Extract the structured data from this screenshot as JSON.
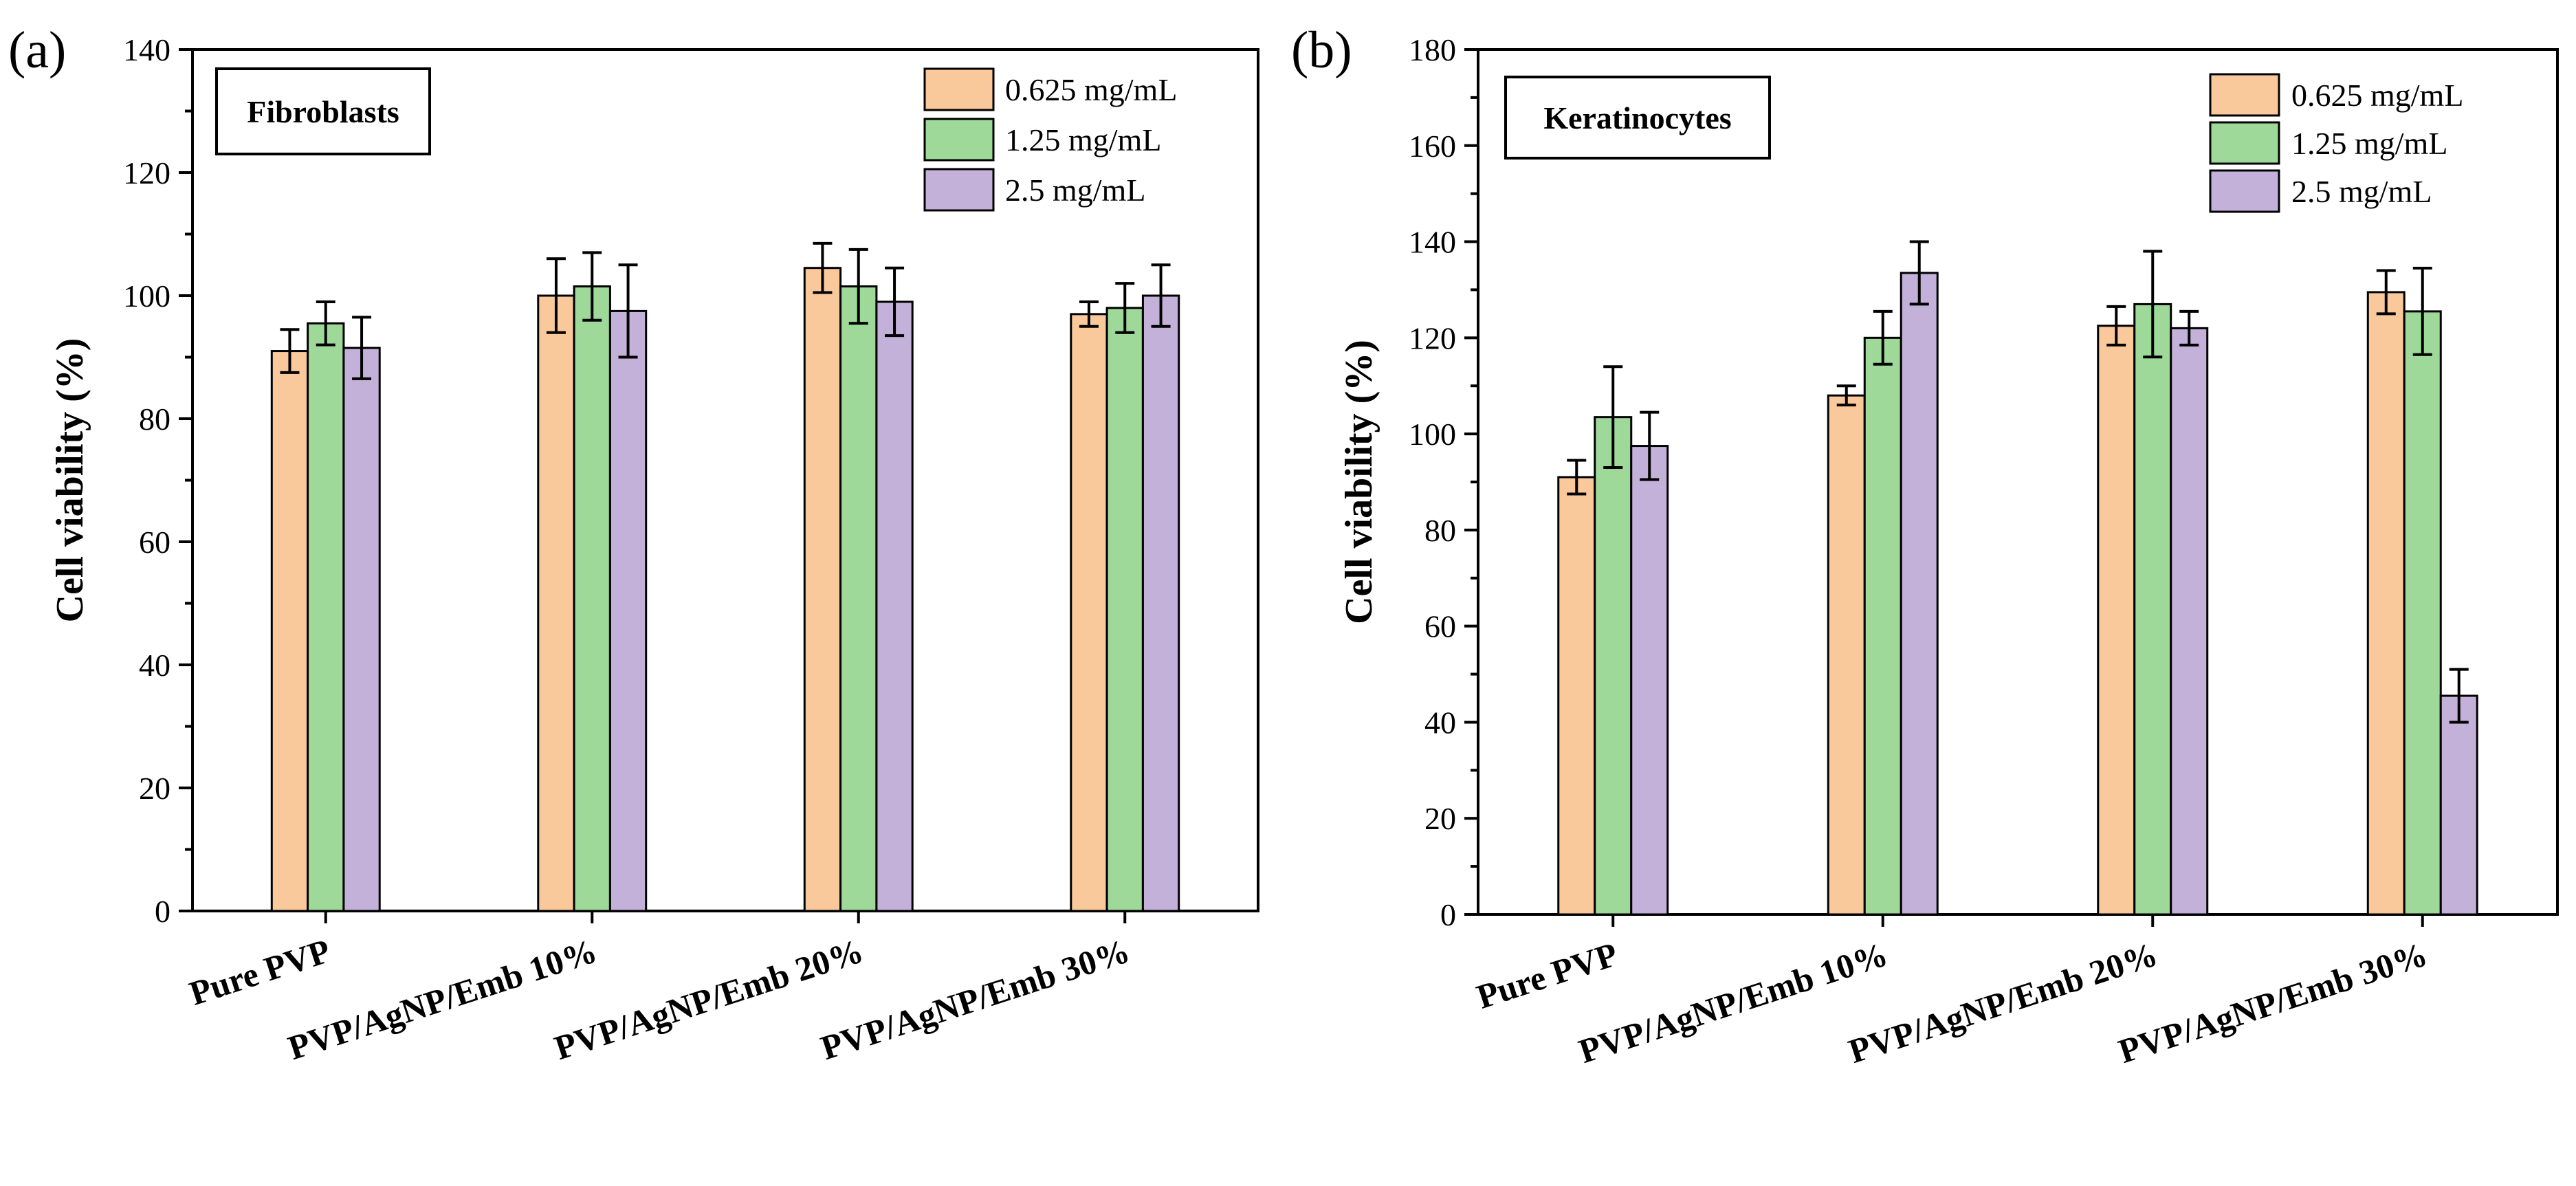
{
  "chart_data": [
    {
      "type": "bar",
      "panel_label": "(a)",
      "title": "Fibroblasts",
      "xlabel": "",
      "ylabel": "Cell viability (%)",
      "ylim": [
        0,
        140
      ],
      "yticks": [
        "0",
        "20",
        "40",
        "60",
        "80",
        "100",
        "120",
        "140"
      ],
      "categories": [
        "Pure PVP",
        "PVP/AgNP/Emb 10%",
        "PVP/AgNP/Emb 20%",
        "PVP/AgNP/Emb 30%"
      ],
      "legend_position": "top-right",
      "series": [
        {
          "name": "0.625 mg/mL",
          "color": "#f9c89b",
          "values": [
            91,
            100,
            104.5,
            97
          ],
          "errors": [
            3.5,
            6,
            4,
            2
          ]
        },
        {
          "name": "1.25 mg/mL",
          "color": "#9ed99a",
          "values": [
            95.5,
            101.5,
            101.5,
            98
          ],
          "errors": [
            3.5,
            5.5,
            6,
            4
          ]
        },
        {
          "name": "2.5 mg/mL",
          "color": "#c3b1d9",
          "values": [
            91.5,
            97.5,
            99,
            100
          ],
          "errors": [
            5,
            7.5,
            5.5,
            5
          ]
        }
      ]
    },
    {
      "type": "bar",
      "panel_label": "(b)",
      "title": "Keratinocytes",
      "xlabel": "",
      "ylabel": "Cell viability (%)",
      "ylim": [
        0,
        180
      ],
      "yticks": [
        "0",
        "20",
        "40",
        "60",
        "80",
        "100",
        "120",
        "140",
        "160",
        "180"
      ],
      "categories": [
        "Pure PVP",
        "PVP/AgNP/Emb 10%",
        "PVP/AgNP/Emb 20%",
        "PVP/AgNP/Emb 30%"
      ],
      "legend_position": "top-right",
      "series": [
        {
          "name": "0.625 mg/mL",
          "color": "#f9c89b",
          "values": [
            91,
            108,
            122.5,
            129.5
          ],
          "errors": [
            3.5,
            2,
            4,
            4.5
          ]
        },
        {
          "name": "1.25 mg/mL",
          "color": "#9ed99a",
          "values": [
            103.5,
            120,
            127,
            125.5
          ],
          "errors": [
            10.5,
            5.5,
            11,
            9
          ]
        },
        {
          "name": "2.5 mg/mL",
          "color": "#c3b1d9",
          "values": [
            97.5,
            133.5,
            122,
            45.5
          ],
          "errors": [
            7,
            6.5,
            3.5,
            5.5
          ]
        }
      ]
    }
  ]
}
